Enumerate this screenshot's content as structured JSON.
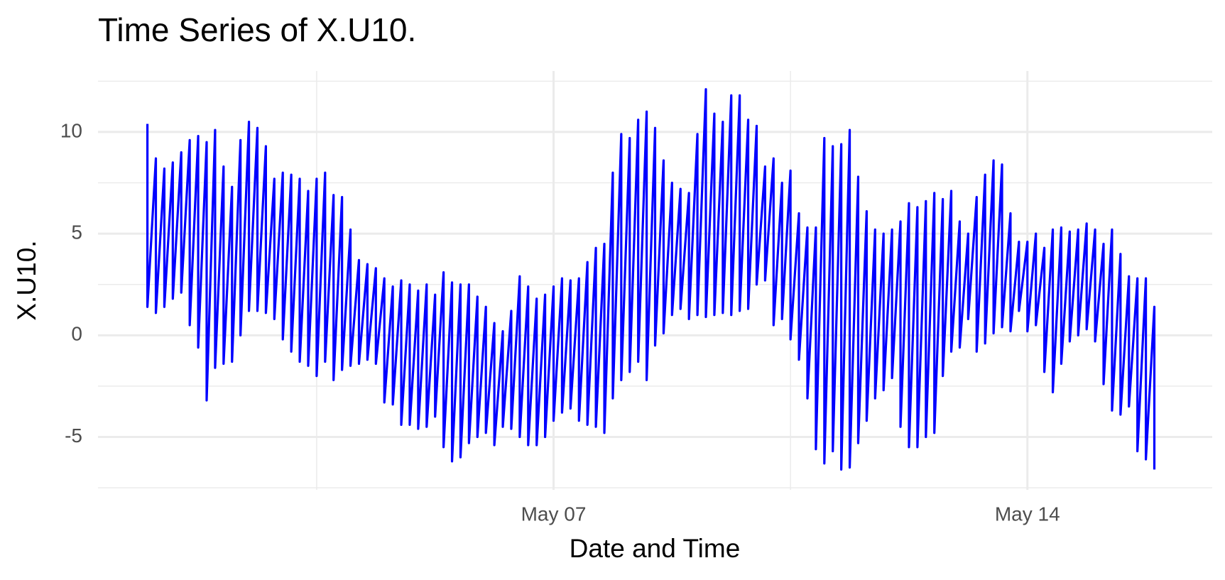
{
  "chart_data": {
    "type": "line",
    "title": "Time Series of X.U10.",
    "x_label": "Date and Time",
    "y_label": "X.U10.",
    "color": "#0000ff",
    "grid": true,
    "xlim": [
      0.27,
      16.73
    ],
    "ylim": [
      -7.6,
      13.0
    ],
    "xticks": [
      {
        "value": 7,
        "label": "May 07"
      },
      {
        "value": 14,
        "label": "May 14"
      }
    ],
    "yticks": [
      -5,
      0,
      5,
      10
    ],
    "xminor": [
      3.5,
      10.5
    ],
    "yminor": [
      -7.5,
      -2.5,
      2.5,
      7.5,
      12.5
    ],
    "x": [
      1,
      1,
      1.125,
      1.125,
      1.25,
      1.25,
      1.375,
      1.375,
      1.5,
      1.5,
      1.625,
      1.625,
      1.75,
      1.75,
      1.875,
      1.875,
      2,
      2,
      2.125,
      2.125,
      2.25,
      2.25,
      2.375,
      2.375,
      2.5,
      2.5,
      2.625,
      2.625,
      2.75,
      2.75,
      2.875,
      2.875,
      3,
      3,
      3.125,
      3.125,
      3.25,
      3.25,
      3.375,
      3.375,
      3.5,
      3.5,
      3.625,
      3.625,
      3.75,
      3.75,
      3.875,
      3.875,
      4,
      4,
      4.125,
      4.125,
      4.25,
      4.25,
      4.375,
      4.375,
      4.5,
      4.5,
      4.625,
      4.625,
      4.75,
      4.75,
      4.875,
      4.875,
      5,
      5,
      5.125,
      5.125,
      5.25,
      5.25,
      5.375,
      5.375,
      5.5,
      5.5,
      5.625,
      5.625,
      5.75,
      5.75,
      5.875,
      5.875,
      6,
      6,
      6.125,
      6.125,
      6.25,
      6.25,
      6.375,
      6.375,
      6.5,
      6.5,
      6.625,
      6.625,
      6.75,
      6.75,
      6.875,
      6.875,
      7,
      7,
      7.125,
      7.125,
      7.25,
      7.25,
      7.375,
      7.375,
      7.5,
      7.5,
      7.625,
      7.625,
      7.75,
      7.75,
      7.875,
      7.875,
      8,
      8,
      8.125,
      8.125,
      8.25,
      8.25,
      8.375,
      8.375,
      8.5,
      8.5,
      8.625,
      8.625,
      8.75,
      8.75,
      8.875,
      8.875,
      9,
      9,
      9.125,
      9.125,
      9.25,
      9.25,
      9.375,
      9.375,
      9.5,
      9.5,
      9.625,
      9.625,
      9.75,
      9.75,
      9.875,
      9.875,
      10,
      10,
      10.125,
      10.125,
      10.25,
      10.25,
      10.375,
      10.375,
      10.5,
      10.5,
      10.625,
      10.625,
      10.75,
      10.75,
      10.875,
      10.875,
      11,
      11,
      11.125,
      11.125,
      11.25,
      11.25,
      11.375,
      11.375,
      11.5,
      11.5,
      11.625,
      11.625,
      11.75,
      11.75,
      11.875,
      11.875,
      12,
      12,
      12.125,
      12.125,
      12.25,
      12.25,
      12.375,
      12.375,
      12.5,
      12.5,
      12.625,
      12.625,
      12.75,
      12.75,
      12.875,
      12.875,
      13,
      13,
      13.125,
      13.125,
      13.25,
      13.25,
      13.375,
      13.375,
      13.5,
      13.5,
      13.625,
      13.625,
      13.75,
      13.75,
      13.875,
      13.875,
      14,
      14,
      14.125,
      14.125,
      14.25,
      14.25,
      14.375,
      14.375,
      14.5,
      14.5,
      14.625,
      14.625,
      14.75,
      14.75,
      14.875,
      14.875,
      15,
      15,
      15.125,
      15.125,
      15.25,
      15.25,
      15.375,
      15.375,
      15.5,
      15.5,
      15.625,
      15.625,
      15.75,
      15.75,
      15.875,
      15.875
    ],
    "values": [
      10.4,
      1.4,
      8.7,
      1.1,
      8.2,
      1.4,
      8.5,
      1.8,
      9.0,
      2.1,
      9.6,
      0.5,
      9.8,
      -0.6,
      9.5,
      -3.2,
      10.1,
      -1.6,
      8.3,
      -1.4,
      7.3,
      -1.3,
      9.6,
      0.0,
      10.5,
      1.2,
      10.2,
      1.2,
      9.3,
      1.1,
      7.7,
      0.8,
      8.0,
      -0.2,
      7.9,
      -0.8,
      7.7,
      -1.3,
      7.1,
      -1.5,
      7.7,
      -2.0,
      8.0,
      -1.3,
      6.9,
      -2.2,
      6.8,
      -1.7,
      5.2,
      -1.5,
      3.7,
      -1.4,
      3.5,
      -1.2,
      3.3,
      -1.4,
      2.8,
      -3.3,
      2.4,
      -3.4,
      2.7,
      -4.4,
      2.5,
      -4.4,
      2.2,
      -4.6,
      2.5,
      -4.5,
      2.0,
      -4.0,
      3.1,
      -5.5,
      2.6,
      -6.2,
      2.5,
      -6.0,
      2.5,
      -5.3,
      1.9,
      -5.0,
      1.4,
      -4.8,
      0.6,
      -5.4,
      0.2,
      -4.5,
      1.2,
      -4.6,
      2.9,
      -5.0,
      2.4,
      -5.4,
      1.8,
      -5.4,
      2.0,
      -5.0,
      2.4,
      -4.2,
      2.8,
      -3.8,
      2.7,
      -3.6,
      2.8,
      -4.2,
      3.6,
      -4.4,
      4.3,
      -4.5,
      4.5,
      -4.8,
      8.0,
      -3.1,
      9.9,
      -2.2,
      9.7,
      -1.8,
      10.6,
      -1.3,
      11.0,
      -2.2,
      10.2,
      -0.5,
      8.6,
      0.1,
      7.5,
      1.0,
      7.2,
      1.3,
      7.0,
      0.8,
      9.9,
      1.0,
      12.1,
      0.9,
      10.9,
      1.0,
      10.5,
      1.1,
      11.8,
      1.0,
      11.8,
      1.2,
      10.6,
      1.3,
      10.3,
      2.5,
      8.3,
      2.7,
      8.7,
      0.5,
      7.5,
      0.8,
      8.1,
      -0.2,
      6.0,
      -1.2,
      5.3,
      -3.1,
      5.3,
      -5.6,
      9.7,
      -6.3,
      9.3,
      -5.7,
      9.4,
      -6.6,
      10.1,
      -6.5,
      7.8,
      -5.3,
      6.1,
      -4.2,
      5.2,
      -3.1,
      5.0,
      -2.7,
      5.2,
      -2.1,
      5.6,
      -4.5,
      6.5,
      -5.5,
      6.3,
      -5.5,
      6.6,
      -5.0,
      7.0,
      -4.8,
      6.7,
      -2.0,
      7.1,
      -0.8,
      5.6,
      -0.6,
      5.0,
      0.8,
      6.8,
      -0.8,
      7.9,
      -0.4,
      8.6,
      0.1,
      8.4,
      0.4,
      6.0,
      0.2,
      4.6,
      1.2,
      4.6,
      0.2,
      5.0,
      0.5,
      4.3,
      -1.8,
      5.2,
      -2.8,
      5.3,
      -1.4,
      5.1,
      -0.3,
      5.2,
      0.0,
      5.5,
      0.3,
      5.2,
      -0.3,
      4.5,
      -2.4,
      5.2,
      -3.7,
      4.0,
      -3.9,
      2.9,
      -3.5,
      2.8,
      -5.7,
      2.8,
      -6.1,
      1.4,
      -6.6
    ]
  }
}
